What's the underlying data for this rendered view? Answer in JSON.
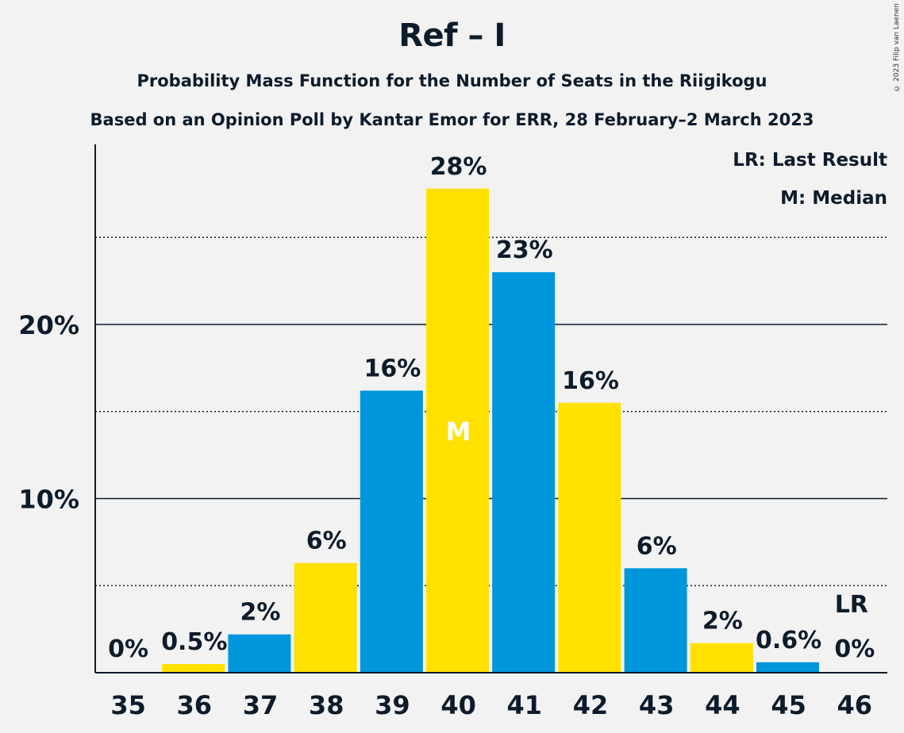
{
  "title": "Ref – I",
  "subtitle": "Probability Mass Function for the Number of Seats in the Riigikogu",
  "subtitle2": "Based on an Opinion Poll by Kantar Emor for ERR, 28 February–2 March 2023",
  "copyright": "© 2023 Filip van Laenen",
  "legend": {
    "last_result": "LR: Last Result",
    "median": "M: Median"
  },
  "colors": {
    "blue": "#0096db",
    "yellow": "#ffe100",
    "text": "#0d1b2a",
    "background": "#f2f2f2"
  },
  "chart_data": {
    "type": "bar",
    "categories": [
      "35",
      "36",
      "37",
      "38",
      "39",
      "40",
      "41",
      "42",
      "43",
      "44",
      "45",
      "46"
    ],
    "values": [
      0,
      0.5,
      2.2,
      6.3,
      16.2,
      27.8,
      23,
      15.5,
      6,
      1.7,
      0.6,
      0
    ],
    "labels": [
      "0%",
      "0.5%",
      "2%",
      "6%",
      "16%",
      "28%",
      "23%",
      "16%",
      "6%",
      "2%",
      "0.6%",
      "0%"
    ],
    "bar_colors": [
      "#0096db",
      "#ffe100",
      "#0096db",
      "#ffe100",
      "#0096db",
      "#ffe100",
      "#0096db",
      "#ffe100",
      "#0096db",
      "#ffe100",
      "#0096db",
      "#ffe100"
    ],
    "y_ticks": [
      10,
      20
    ],
    "y_tick_labels": [
      "10%",
      "20%"
    ],
    "dotted_gridlines": [
      5,
      15,
      25
    ],
    "ylim": [
      0,
      30
    ],
    "median_category": "40",
    "median_marker": "M",
    "last_result_category": "46",
    "last_result_marker": "LR",
    "legend_placement": "top-right"
  }
}
